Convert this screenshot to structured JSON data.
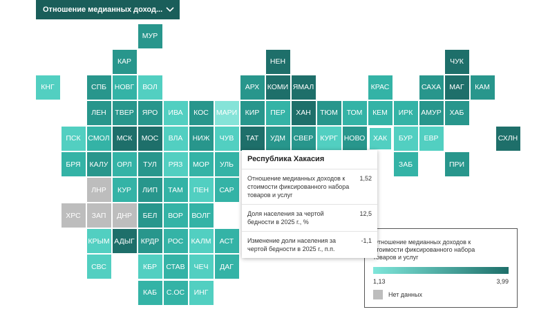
{
  "dropdown": "Отношение медианных доход...",
  "tiles": [
    {
      "label": "МУР",
      "color": "#28968c"
    },
    {
      "label": "КАР",
      "color": "#28968c"
    },
    {
      "label": "НЕН",
      "color": "#1e6f6a"
    },
    {
      "label": "ЧУК",
      "color": "#1e6f6a"
    },
    {
      "label": "КНГ",
      "color": "#52cfc1"
    },
    {
      "label": "СПБ",
      "color": "#28968c"
    },
    {
      "label": "НОВГ",
      "color": "#34b3a6"
    },
    {
      "label": "ВОЛ",
      "color": "#52cfc1"
    },
    {
      "label": "АРХ",
      "color": "#28968c"
    },
    {
      "label": "КОМИ",
      "color": "#1e6f6a"
    },
    {
      "label": "ЯМАЛ",
      "color": "#1e6f6a"
    },
    {
      "label": "КРАС",
      "color": "#34b3a6"
    },
    {
      "label": "САХА",
      "color": "#28968c"
    },
    {
      "label": "МАГ",
      "color": "#1e6f6a"
    },
    {
      "label": "КАМ",
      "color": "#28968c"
    },
    {
      "label": "ЛЕН",
      "color": "#28968c"
    },
    {
      "label": "ТВЕР",
      "color": "#28968c"
    },
    {
      "label": "ЯРО",
      "color": "#28968c"
    },
    {
      "label": "ИВА",
      "color": "#52cfc1"
    },
    {
      "label": "КОС",
      "color": "#28968c"
    },
    {
      "label": "МАРИ",
      "color": "#85e3d8"
    },
    {
      "label": "КИР",
      "color": "#28968c"
    },
    {
      "label": "ПЕР",
      "color": "#34b3a6"
    },
    {
      "label": "ХАН",
      "color": "#1e6f6a"
    },
    {
      "label": "ТЮМ",
      "color": "#28968c"
    },
    {
      "label": "ТОМ",
      "color": "#34b3a6"
    },
    {
      "label": "КЕМ",
      "color": "#34b3a6"
    },
    {
      "label": "ИРК",
      "color": "#34b3a6"
    },
    {
      "label": "АМУР",
      "color": "#28968c"
    },
    {
      "label": "ХАБ",
      "color": "#28968c"
    },
    {
      "label": "ПСК",
      "color": "#52cfc1"
    },
    {
      "label": "СМОЛ",
      "color": "#34b3a6"
    },
    {
      "label": "МСК",
      "color": "#1e6f6a"
    },
    {
      "label": "МОС",
      "color": "#1e6f6a"
    },
    {
      "label": "ВЛА",
      "color": "#52cfc1"
    },
    {
      "label": "НИЖ",
      "color": "#28968c"
    },
    {
      "label": "ЧУВ",
      "color": "#52cfc1"
    },
    {
      "label": "ТАТ",
      "color": "#1e6f6a"
    },
    {
      "label": "УДМ",
      "color": "#28968c"
    },
    {
      "label": "СВЕР",
      "color": "#28968c"
    },
    {
      "label": "КУРГ",
      "color": "#52cfc1"
    },
    {
      "label": "НОВО",
      "color": "#28968c"
    },
    {
      "label": "ХАК",
      "color": "#52cfc1"
    },
    {
      "label": "БУР",
      "color": "#52cfc1"
    },
    {
      "label": "ЕВР",
      "color": "#52cfc1"
    },
    {
      "label": "СХЛН",
      "color": "#1e6f6a"
    },
    {
      "label": "БРЯ",
      "color": "#34b3a6"
    },
    {
      "label": "КАЛУ",
      "color": "#28968c"
    },
    {
      "label": "ОРЛ",
      "color": "#34b3a6"
    },
    {
      "label": "ТУЛ",
      "color": "#28968c"
    },
    {
      "label": "РЯЗ",
      "color": "#52cfc1"
    },
    {
      "label": "МОР",
      "color": "#34b3a6"
    },
    {
      "label": "УЛЬ",
      "color": "#34b3a6"
    },
    {
      "label": "ЗАБ",
      "color": "#34b3a6"
    },
    {
      "label": "ПРИ",
      "color": "#28968c"
    },
    {
      "label": "ЛНР",
      "color": "#bdbdbd"
    },
    {
      "label": "КУР",
      "color": "#34b3a6"
    },
    {
      "label": "ЛИП",
      "color": "#28968c"
    },
    {
      "label": "ТАМ",
      "color": "#34b3a6"
    },
    {
      "label": "ПЕН",
      "color": "#52cfc1"
    },
    {
      "label": "САР",
      "color": "#34b3a6"
    },
    {
      "label": "ХРС",
      "color": "#bdbdbd"
    },
    {
      "label": "ЗАП",
      "color": "#bdbdbd"
    },
    {
      "label": "ДНР",
      "color": "#bdbdbd"
    },
    {
      "label": "БЕЛ",
      "color": "#28968c"
    },
    {
      "label": "ВОР",
      "color": "#34b3a6"
    },
    {
      "label": "ВОЛГ",
      "color": "#34b3a6"
    },
    {
      "label": "КРЫМ",
      "color": "#52cfc1"
    },
    {
      "label": "АДЫГ",
      "color": "#1e6f6a"
    },
    {
      "label": "КРДР",
      "color": "#28968c"
    },
    {
      "label": "РОС",
      "color": "#34b3a6"
    },
    {
      "label": "КАЛМ",
      "color": "#52cfc1"
    },
    {
      "label": "АСТ",
      "color": "#34b3a6"
    },
    {
      "label": "СВС",
      "color": "#52cfc1"
    },
    {
      "label": "КБР",
      "color": "#52cfc1"
    },
    {
      "label": "СТАВ",
      "color": "#34b3a6"
    },
    {
      "label": "ЧЕЧ",
      "color": "#52cfc1"
    },
    {
      "label": "ДАГ",
      "color": "#34b3a6"
    },
    {
      "label": "КАБ",
      "color": "#34b3a6"
    },
    {
      "label": "С.ОС",
      "color": "#34b3a6"
    },
    {
      "label": "ИНГ",
      "color": "#52cfc1"
    }
  ],
  "tooltip": {
    "title": "Республика Хакасия",
    "rows": [
      {
        "label": "Отношение медианных доходов к стоимости фиксированного набора товаров и услуг",
        "value": "1,52"
      },
      {
        "label": "Доля населения за чертой бедности в 2025 г., %",
        "value": "12,5"
      },
      {
        "label": "Изменение доли населения за чертой бедности в 2025 г., п.п.",
        "value": "-1,1"
      }
    ]
  },
  "legend": {
    "title": "Отношение медианных доходов к стоимости фиксированного набора товаров и услуг",
    "min": "1,13",
    "max": "3,99",
    "no_data": "Нет данных"
  }
}
